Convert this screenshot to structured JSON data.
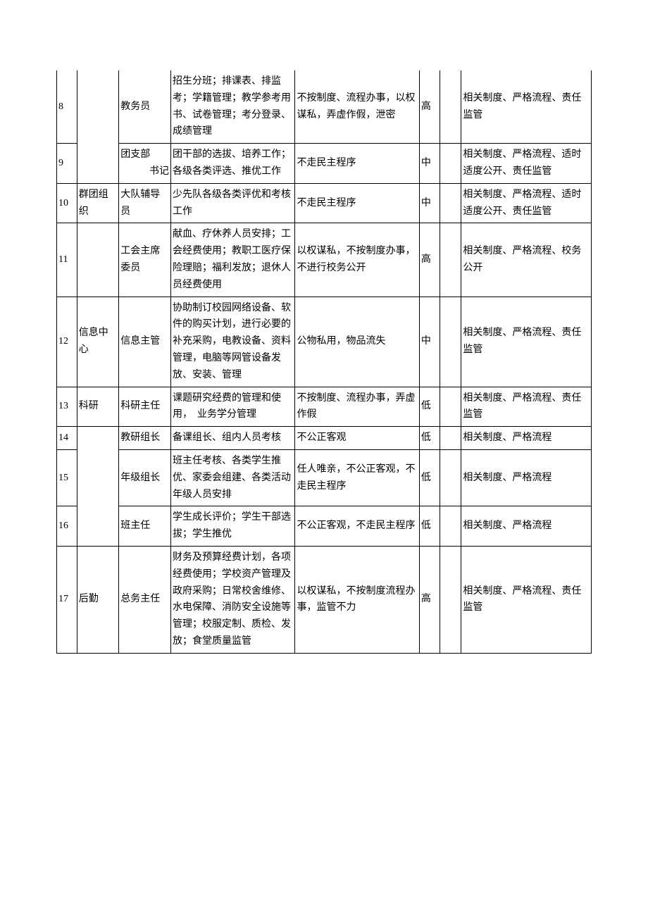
{
  "rows": [
    {
      "num": "8",
      "dept": "",
      "role": "教务员",
      "duty": "招生分班；排课表、排监考；学籍管理；教学参考用书、试卷管理；考分登录、成绩管理",
      "risk": "不按制度、流程办事，以权谋私，弄虚作假，泄密",
      "level": "高",
      "measure": "相关制度、严格流程、责任监管"
    },
    {
      "num": "9",
      "dept": "",
      "role_line1": "团支部",
      "role_line2": "书记",
      "duty": "团干部的选拔、培养工作；各级各类评选、推优工作",
      "risk": "不走民主程序",
      "level": "中",
      "measure": "相关制度、严格流程、适时适度公开、责任监管"
    },
    {
      "num": "10",
      "dept": "群团组织",
      "role": "大队辅导员",
      "duty": "少先队各级各类评优和考核工作",
      "risk": "不走民主程序",
      "level": "中",
      "measure": "相关制度、严格流程、适时适度公开、责任监管"
    },
    {
      "num": "11",
      "dept": "",
      "role": "工会主席委员",
      "duty": "献血、疗休养人员安排；工会经费使用；教职工医疗保险理赔；福利发放；退休人员经费使用",
      "risk": "以权谋私，不按制度办事，不进行校务公开",
      "level": "高",
      "measure": "相关制度、严格流程、校务公开"
    },
    {
      "num": "12",
      "dept": "信息中心",
      "role": "信息主管",
      "duty": "协助制订校园网络设备、软件的购买计划，进行必要的补充采购，电教设备、资料管理，电脑等网管设备发放、安装、管理",
      "risk": "公物私用，物品流失",
      "level": "中",
      "measure": "相关制度、严格流程、责任监管"
    },
    {
      "num": "13",
      "dept": "科研",
      "role": "科研主任",
      "duty": "课题研究经费的管理和使用，　业务学分管理",
      "risk": "不按制度、流程办事，弄虚作假",
      "level": "低",
      "measure": "相关制度、严格流程、责任监管"
    },
    {
      "num": "14",
      "dept": "",
      "role": "教研组长",
      "duty": "备课组长、组内人员考核",
      "risk": "不公正客观",
      "level": "低",
      "measure": "相关制度、严格流程"
    },
    {
      "num": "15",
      "dept": "",
      "role": "年级组长",
      "duty": "班主任考核、各类学生推优、家委会组建、各类活动年级人员安排",
      "risk": "任人唯亲，不公正客观，不走民主程序",
      "level": "低",
      "measure": "相关制度、严格流程"
    },
    {
      "num": "16",
      "dept": "",
      "role": "班主任",
      "duty": "学生成长评价；学生干部选拔；学生推优",
      "risk": "不公正客观，不走民主程序",
      "level": "低",
      "measure": "相关制度、严格流程"
    },
    {
      "num": "17",
      "dept": "后勤",
      "role": "总务主任",
      "duty": "财务及预算经费计划，各项经费使用；学校资产管理及政府采购；日常校舍维修、水电保障、消防安全设施等管理；校服定制、质检、发放；食堂质量监管",
      "risk": "以权谋私，不按制度流程办事，监管不力",
      "level": "高",
      "measure": "相关制度、严格流程、责任监管"
    }
  ]
}
